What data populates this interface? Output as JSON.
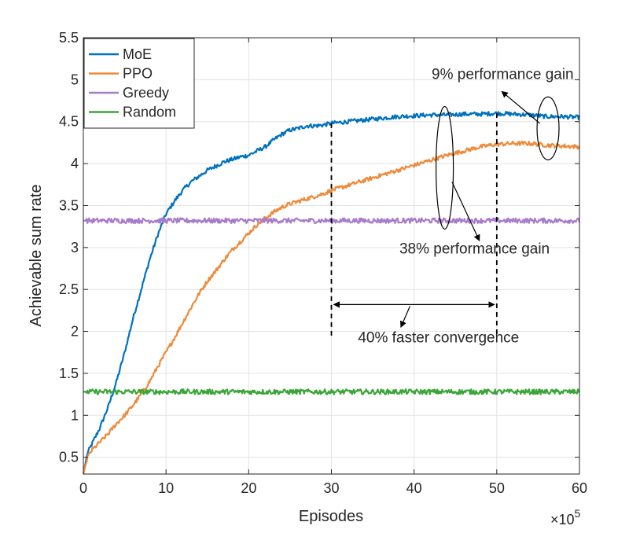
{
  "chart_data": {
    "type": "line",
    "title": "",
    "xlabel": "Episodes",
    "ylabel": "Achievable sum rate",
    "x_multiplier": "×10",
    "x_multiplier_exp": "5",
    "xlim": [
      0,
      60
    ],
    "ylim": [
      0.3,
      5.5
    ],
    "xticks": [
      0,
      10,
      20,
      30,
      40,
      50,
      60
    ],
    "xtick_labels": [
      "0",
      "10",
      "20",
      "30",
      "40",
      "50",
      "60"
    ],
    "yticks": [
      0.5,
      1,
      1.5,
      2,
      2.5,
      3,
      3.5,
      4,
      4.5,
      5,
      5.5
    ],
    "ytick_labels": [
      "0.5",
      "1",
      "1.5",
      "2",
      "2.5",
      "3",
      "3.5",
      "4",
      "4.5",
      "5",
      "5.5"
    ],
    "grid": true,
    "legend_position": "top-left",
    "series": [
      {
        "name": "MoE",
        "color": "#0072BD",
        "x": [
          0,
          0.5,
          1,
          2,
          3,
          4,
          5,
          6,
          7,
          8,
          9,
          10,
          11,
          12,
          13,
          14,
          15,
          16,
          17,
          18,
          19,
          20,
          21,
          22,
          23,
          24,
          25,
          26,
          27,
          28,
          29,
          30,
          32,
          34,
          36,
          38,
          40,
          42,
          44,
          46,
          48,
          50,
          52,
          54,
          56,
          58,
          60
        ],
        "y": [
          0.3,
          0.55,
          0.65,
          0.85,
          1.1,
          1.4,
          1.75,
          2.15,
          2.5,
          2.85,
          3.15,
          3.4,
          3.55,
          3.68,
          3.78,
          3.85,
          3.92,
          3.97,
          4.02,
          4.05,
          4.08,
          4.1,
          4.15,
          4.2,
          4.28,
          4.35,
          4.4,
          4.42,
          4.45,
          4.45,
          4.46,
          4.48,
          4.5,
          4.52,
          4.54,
          4.56,
          4.57,
          4.58,
          4.58,
          4.59,
          4.59,
          4.6,
          4.59,
          4.58,
          4.56,
          4.56,
          4.55
        ]
      },
      {
        "name": "PPO",
        "color": "#EE8A3A",
        "x": [
          0,
          0.5,
          1,
          2,
          3,
          4,
          5,
          6,
          7,
          8,
          9,
          10,
          11,
          12,
          13,
          14,
          15,
          16,
          17,
          18,
          19,
          20,
          21,
          22,
          23,
          24,
          25,
          26,
          27,
          28,
          29,
          30,
          32,
          34,
          36,
          38,
          40,
          42,
          44,
          46,
          48,
          50,
          52,
          54,
          56,
          58,
          60
        ],
        "y": [
          0.3,
          0.5,
          0.58,
          0.68,
          0.78,
          0.9,
          1.0,
          1.12,
          1.25,
          1.4,
          1.58,
          1.75,
          1.92,
          2.1,
          2.28,
          2.45,
          2.6,
          2.72,
          2.85,
          2.97,
          3.07,
          3.17,
          3.27,
          3.35,
          3.42,
          3.48,
          3.52,
          3.55,
          3.58,
          3.61,
          3.64,
          3.68,
          3.74,
          3.8,
          3.86,
          3.92,
          3.98,
          4.04,
          4.1,
          4.15,
          4.2,
          4.23,
          4.24,
          4.24,
          4.22,
          4.21,
          4.2
        ]
      },
      {
        "name": "Greedy",
        "color": "#A87CC8",
        "x": [
          0,
          60
        ],
        "y": [
          3.32,
          3.32
        ]
      },
      {
        "name": "Random",
        "color": "#3BA638",
        "x": [
          0,
          60
        ],
        "y": [
          1.28,
          1.28
        ]
      }
    ],
    "annotations": [
      {
        "id": "gain9",
        "text": "9% performance gain",
        "x": 52,
        "y": 5.0
      },
      {
        "id": "gain38",
        "text": "38% performance gain",
        "x": 46,
        "y": 2.95
      },
      {
        "id": "faster40",
        "text": "40% faster convergence",
        "x": 41,
        "y": 1.87
      }
    ]
  }
}
